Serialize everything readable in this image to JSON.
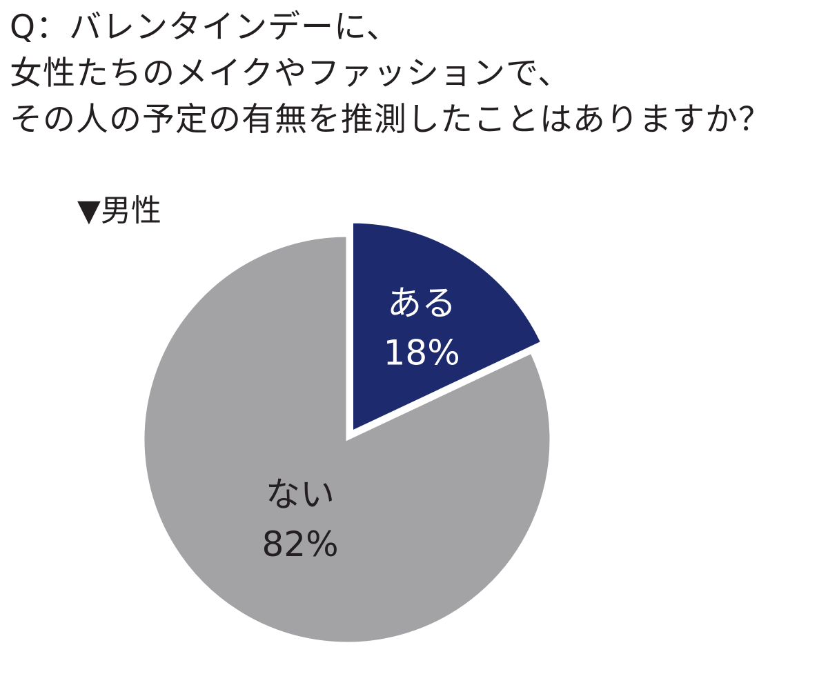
{
  "question": {
    "lines": [
      "Q：バレンタインデーに、",
      "女性たちのメイクやファッションで、",
      "その人の予定の有無を推測したことはありますか？"
    ]
  },
  "group_label": "▼男性",
  "chart_data": {
    "type": "pie",
    "title": "Q：バレンタインデーに、女性たちのメイクやファッションで、その人の予定の有無を推測したことはありますか？",
    "group": "▼男性",
    "slices": [
      {
        "label": "ある",
        "value": 18,
        "value_label": "18%",
        "color": "#1d2b6e",
        "text_color": "#ffffff",
        "exploded": true
      },
      {
        "label": "ない",
        "value": 82,
        "value_label": "82%",
        "color": "#a3a3a5",
        "text_color": "#231f20",
        "exploded": false
      }
    ]
  }
}
